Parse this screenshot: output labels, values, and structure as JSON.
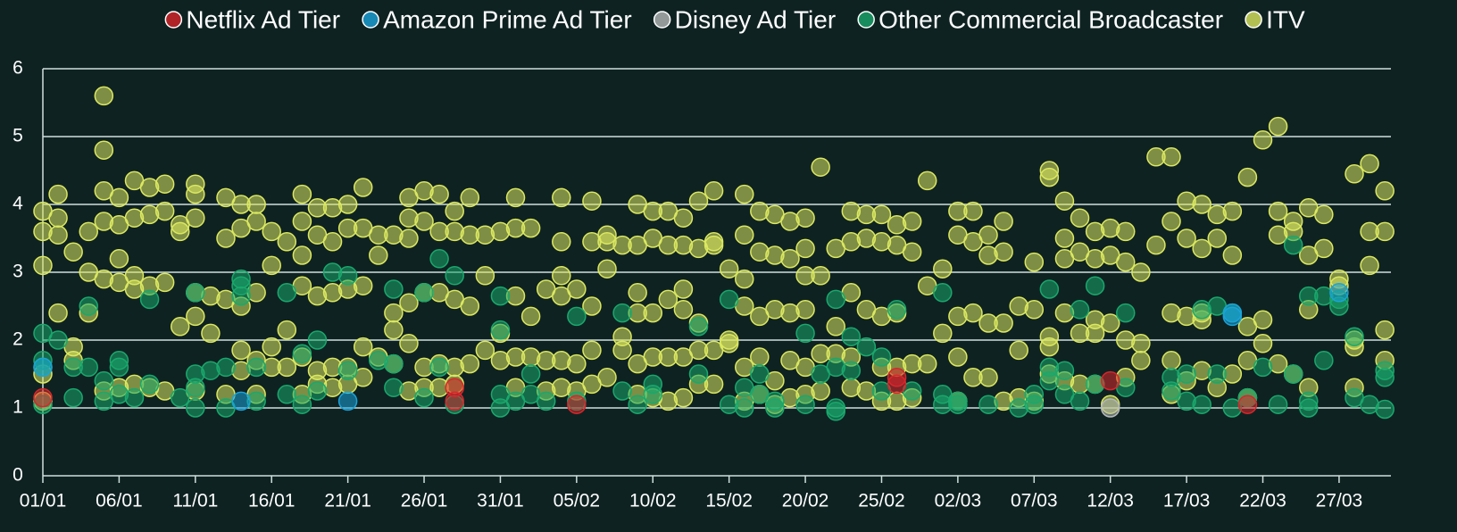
{
  "chart_data": {
    "type": "scatter",
    "xlim": [
      1,
      89.4
    ],
    "ylim": [
      0,
      6
    ],
    "yticks": [
      0,
      1,
      2,
      3,
      4,
      5,
      6
    ],
    "grid": true,
    "xticks": [
      {
        "value": 1,
        "label": "01/01"
      },
      {
        "value": 6,
        "label": "06/01"
      },
      {
        "value": 11,
        "label": "11/01"
      },
      {
        "value": 16,
        "label": "16/01"
      },
      {
        "value": 21,
        "label": "21/01"
      },
      {
        "value": 26,
        "label": "26/01"
      },
      {
        "value": 31,
        "label": "31/01"
      },
      {
        "value": 36,
        "label": "05/02"
      },
      {
        "value": 41,
        "label": "10/02"
      },
      {
        "value": 46,
        "label": "15/02"
      },
      {
        "value": 51,
        "label": "20/02"
      },
      {
        "value": 56,
        "label": "25/02"
      },
      {
        "value": 61,
        "label": "02/03"
      },
      {
        "value": 66,
        "label": "07/03"
      },
      {
        "value": 71,
        "label": "12/03"
      },
      {
        "value": 76,
        "label": "17/03"
      },
      {
        "value": 81,
        "label": "22/03"
      },
      {
        "value": 86,
        "label": "27/03"
      }
    ],
    "legend": "top",
    "series": [
      {
        "name": "Netflix Ad Tier",
        "color": "#d8262b",
        "x": [
          1,
          28,
          28,
          36,
          57,
          57,
          71,
          80
        ],
        "values": [
          1.15,
          1.1,
          1.3,
          1.05,
          1.45,
          1.35,
          1.4,
          1.05
        ]
      },
      {
        "name": "Amazon Prime Ad Tier",
        "color": "#1aa3d9",
        "x": [
          1,
          14,
          21,
          79,
          79,
          86
        ],
        "values": [
          1.6,
          1.1,
          1.1,
          2.4,
          2.35,
          2.7
        ]
      },
      {
        "name": "Disney Ad Tier",
        "color": "#b4b8b8",
        "x": [
          71
        ],
        "values": [
          1.0
        ]
      },
      {
        "name": "Other Commercial Broadcaster",
        "color": "#1aa86c",
        "x": [
          1,
          1,
          1,
          1,
          2,
          3,
          3,
          4,
          4,
          5,
          5,
          6,
          6,
          6,
          7,
          8,
          8,
          10,
          11,
          11,
          11,
          11,
          12,
          13,
          13,
          14,
          14,
          14,
          15,
          15,
          17,
          17,
          18,
          18,
          19,
          19,
          20,
          21,
          21,
          23,
          24,
          24,
          24,
          26,
          26,
          27,
          27,
          28,
          28,
          31,
          31,
          31,
          31,
          32,
          33,
          33,
          34,
          36,
          36,
          39,
          39,
          40,
          41,
          41,
          44,
          44,
          46,
          46,
          47,
          47,
          48,
          48,
          49,
          49,
          51,
          51,
          52,
          53,
          53,
          53,
          53,
          54,
          54,
          55,
          56,
          56,
          57,
          58,
          60,
          60,
          60,
          61,
          61,
          63,
          65,
          66,
          66,
          67,
          67,
          67,
          68,
          68,
          69,
          69,
          70,
          70,
          72,
          72,
          75,
          75,
          76,
          76,
          77,
          77,
          78,
          78,
          79,
          79,
          80,
          81,
          82,
          83,
          83,
          84,
          84,
          84,
          85,
          85,
          86,
          86,
          87,
          87,
          88,
          89,
          89,
          89
        ],
        "values": [
          2.1,
          1.7,
          1.6,
          1.05,
          2.0,
          1.6,
          1.15,
          2.5,
          1.6,
          1.4,
          1.1,
          1.7,
          1.6,
          1.2,
          1.15,
          2.6,
          1.35,
          1.15,
          2.7,
          1.5,
          1.3,
          1.0,
          1.55,
          1.6,
          1.0,
          2.9,
          2.8,
          2.65,
          1.6,
          1.1,
          2.7,
          1.2,
          1.8,
          1.05,
          2.0,
          1.25,
          3.0,
          2.95,
          1.55,
          1.7,
          2.75,
          1.3,
          1.65,
          2.7,
          1.15,
          3.2,
          1.6,
          2.95,
          1.05,
          2.65,
          2.15,
          1.2,
          1.0,
          1.1,
          1.5,
          1.2,
          1.1,
          2.35,
          1.1,
          2.4,
          1.25,
          1.05,
          1.35,
          1.2,
          2.2,
          1.5,
          2.6,
          1.05,
          1.3,
          1.0,
          1.5,
          1.2,
          1.0,
          1.1,
          2.1,
          1.05,
          1.5,
          2.6,
          1.6,
          0.95,
          1.0,
          2.05,
          1.55,
          1.9,
          1.75,
          1.25,
          2.45,
          1.25,
          2.7,
          1.2,
          1.05,
          1.1,
          1.05,
          1.05,
          1.0,
          1.05,
          1.2,
          2.75,
          1.6,
          1.4,
          1.55,
          1.2,
          2.45,
          1.1,
          2.8,
          1.35,
          2.4,
          1.3,
          1.25,
          1.45,
          1.1,
          1.5,
          2.45,
          1.05,
          1.5,
          2.5,
          2.4,
          1.0,
          1.15,
          1.6,
          1.05,
          3.4,
          1.5,
          2.65,
          1.1,
          1.0,
          2.65,
          1.7,
          2.5,
          2.6,
          1.15,
          2.05,
          1.05,
          1.55,
          1.45,
          0.98
        ]
      },
      {
        "name": "ITV",
        "color": "#dbe860",
        "x": [
          1,
          1,
          1,
          1,
          1,
          2,
          2,
          2,
          2,
          3,
          3,
          3,
          4,
          4,
          4,
          5,
          5,
          5,
          5,
          5,
          5,
          6,
          6,
          6,
          6,
          6,
          7,
          7,
          7,
          7,
          7,
          8,
          8,
          8,
          8,
          9,
          9,
          9,
          9,
          10,
          10,
          10,
          11,
          11,
          11,
          11,
          11,
          11,
          12,
          12,
          13,
          13,
          13,
          13,
          14,
          14,
          14,
          14,
          14,
          15,
          15,
          15,
          15,
          15,
          16,
          16,
          16,
          16,
          17,
          17,
          17,
          18,
          18,
          18,
          18,
          18,
          18,
          19,
          19,
          19,
          19,
          19,
          20,
          20,
          20,
          20,
          20,
          21,
          21,
          21,
          21,
          21,
          22,
          22,
          22,
          22,
          22,
          23,
          23,
          23,
          24,
          24,
          24,
          24,
          25,
          25,
          25,
          25,
          25,
          25,
          26,
          26,
          26,
          26,
          26,
          27,
          27,
          27,
          27,
          27,
          28,
          28,
          28,
          28,
          28,
          29,
          29,
          29,
          29,
          30,
          30,
          30,
          31,
          31,
          31,
          32,
          32,
          32,
          32,
          32,
          33,
          33,
          33,
          34,
          34,
          34,
          35,
          35,
          35,
          35,
          35,
          35,
          36,
          36,
          36,
          37,
          37,
          37,
          37,
          37,
          38,
          38,
          38,
          38,
          39,
          39,
          39,
          40,
          40,
          40,
          40,
          40,
          40,
          41,
          41,
          41,
          41,
          41,
          42,
          42,
          42,
          42,
          42,
          43,
          43,
          43,
          43,
          43,
          43,
          44,
          44,
          44,
          44,
          44,
          45,
          45,
          45,
          45,
          45,
          46,
          46,
          46,
          47,
          47,
          47,
          47,
          47,
          47,
          48,
          48,
          48,
          48,
          48,
          49,
          49,
          49,
          49,
          49,
          50,
          50,
          50,
          50,
          50,
          51,
          51,
          51,
          51,
          51,
          51,
          52,
          52,
          52,
          52,
          53,
          53,
          53,
          54,
          54,
          54,
          54,
          54,
          55,
          55,
          55,
          55,
          56,
          56,
          56,
          56,
          56,
          57,
          57,
          57,
          57,
          57,
          58,
          58,
          58,
          58,
          59,
          59,
          59,
          60,
          60,
          61,
          61,
          61,
          61,
          61,
          62,
          62,
          62,
          62,
          63,
          63,
          63,
          63,
          64,
          64,
          64,
          64,
          65,
          65,
          65,
          66,
          66,
          66,
          67,
          67,
          67,
          67,
          67,
          68,
          68,
          68,
          68,
          68,
          69,
          69,
          69,
          69,
          70,
          70,
          70,
          70,
          70,
          71,
          71,
          71,
          71,
          72,
          72,
          72,
          72,
          73,
          73,
          73,
          74,
          74,
          75,
          75,
          75,
          75,
          75,
          76,
          76,
          76,
          76,
          77,
          77,
          77,
          77,
          77,
          78,
          78,
          78,
          79,
          79,
          79,
          80,
          80,
          80,
          80,
          81,
          81,
          81,
          82,
          82,
          82,
          82,
          83,
          83,
          83,
          84,
          84,
          84,
          84,
          85,
          85,
          86,
          86,
          87,
          87,
          87,
          87,
          88,
          88,
          88,
          89,
          89,
          89,
          89
        ],
        "values": [
          3.9,
          3.6,
          3.1,
          1.5,
          1.1,
          4.15,
          3.8,
          3.55,
          2.4,
          3.3,
          1.9,
          1.7,
          3.6,
          3.0,
          2.4,
          5.6,
          4.8,
          4.2,
          3.75,
          2.9,
          1.25,
          4.1,
          3.7,
          3.2,
          2.85,
          1.3,
          4.35,
          3.8,
          2.95,
          2.75,
          1.35,
          4.25,
          3.85,
          2.8,
          1.3,
          4.3,
          3.9,
          2.85,
          1.25,
          3.7,
          3.6,
          2.2,
          4.15,
          4.3,
          3.8,
          2.7,
          2.35,
          1.25,
          2.1,
          2.65,
          4.1,
          3.5,
          2.6,
          1.2,
          4.0,
          3.65,
          2.5,
          1.85,
          1.55,
          4.0,
          3.75,
          2.7,
          1.7,
          1.2,
          3.6,
          3.1,
          1.9,
          1.6,
          3.45,
          2.15,
          1.6,
          4.15,
          3.75,
          3.25,
          2.8,
          1.75,
          1.2,
          3.95,
          3.55,
          2.65,
          1.55,
          1.35,
          3.95,
          3.45,
          2.7,
          1.6,
          1.3,
          4.0,
          3.65,
          2.75,
          1.6,
          1.35,
          4.25,
          3.65,
          2.8,
          1.9,
          1.45,
          3.55,
          3.25,
          1.75,
          3.55,
          2.4,
          2.15,
          1.65,
          4.1,
          3.8,
          3.5,
          2.55,
          1.95,
          1.25,
          4.2,
          3.75,
          2.7,
          1.6,
          1.3,
          4.15,
          3.6,
          2.7,
          1.65,
          1.3,
          3.9,
          3.6,
          2.6,
          1.6,
          1.35,
          4.1,
          3.55,
          2.5,
          1.65,
          3.55,
          2.95,
          1.85,
          3.6,
          2.1,
          1.7,
          4.1,
          3.65,
          2.65,
          1.75,
          1.3,
          3.65,
          2.35,
          1.75,
          2.75,
          1.7,
          1.25,
          4.1,
          3.45,
          2.95,
          2.65,
          1.7,
          1.3,
          2.75,
          1.65,
          1.25,
          4.05,
          3.45,
          2.5,
          1.85,
          1.35,
          3.55,
          3.45,
          3.05,
          1.45,
          3.4,
          2.05,
          1.85,
          4.0,
          3.4,
          2.7,
          2.4,
          1.65,
          1.2,
          3.9,
          3.5,
          2.4,
          1.75,
          1.15,
          3.9,
          3.4,
          2.6,
          1.75,
          1.1,
          3.8,
          3.4,
          2.75,
          2.45,
          1.75,
          1.15,
          4.05,
          3.35,
          2.25,
          1.85,
          1.35,
          4.2,
          3.45,
          3.4,
          1.85,
          1.35,
          3.05,
          2.0,
          1.95,
          4.15,
          3.55,
          2.9,
          2.5,
          1.6,
          1.1,
          3.9,
          3.3,
          2.35,
          1.75,
          1.2,
          3.85,
          3.25,
          2.45,
          1.4,
          1.05,
          3.75,
          3.2,
          2.4,
          1.7,
          1.15,
          3.8,
          3.35,
          2.95,
          2.45,
          1.6,
          1.2,
          4.55,
          2.95,
          1.8,
          1.25,
          3.35,
          2.2,
          1.8,
          3.9,
          3.45,
          2.7,
          1.75,
          1.3,
          3.85,
          3.5,
          2.45,
          1.25,
          3.85,
          3.45,
          2.35,
          1.6,
          1.1,
          3.7,
          3.4,
          2.4,
          1.6,
          1.1,
          3.75,
          3.3,
          1.65,
          1.15,
          4.35,
          2.8,
          1.65,
          3.05,
          2.1,
          3.9,
          3.55,
          2.35,
          1.75,
          1.1,
          3.9,
          3.45,
          2.4,
          1.45,
          3.55,
          3.25,
          2.25,
          1.45,
          3.75,
          3.3,
          2.25,
          1.1,
          2.5,
          1.85,
          1.15,
          3.15,
          2.45,
          1.1,
          4.5,
          4.4,
          2.05,
          1.9,
          1.5,
          4.05,
          3.5,
          3.2,
          2.4,
          1.4,
          3.8,
          3.3,
          2.1,
          1.35,
          3.6,
          3.2,
          2.3,
          2.1,
          1.35,
          3.65,
          3.25,
          2.25,
          1.05,
          3.6,
          3.15,
          2.0,
          1.45,
          3.0,
          1.95,
          1.7,
          4.7,
          3.4,
          4.7,
          3.75,
          2.4,
          1.7,
          1.2,
          4.05,
          3.5,
          2.35,
          1.4,
          4.0,
          3.35,
          2.4,
          2.3,
          1.55,
          3.85,
          3.5,
          1.3,
          3.9,
          3.25,
          1.5,
          4.4,
          2.2,
          1.7,
          1.15,
          4.95,
          2.3,
          1.95,
          5.15,
          3.9,
          3.55,
          1.65,
          3.75,
          3.6,
          1.5,
          3.95,
          3.25,
          2.45,
          1.3,
          3.85,
          3.35,
          2.9,
          2.8,
          4.45,
          2.0,
          1.9,
          1.3,
          4.6,
          3.6,
          3.1,
          4.2,
          3.6,
          2.15,
          1.7
        ]
      }
    ]
  }
}
